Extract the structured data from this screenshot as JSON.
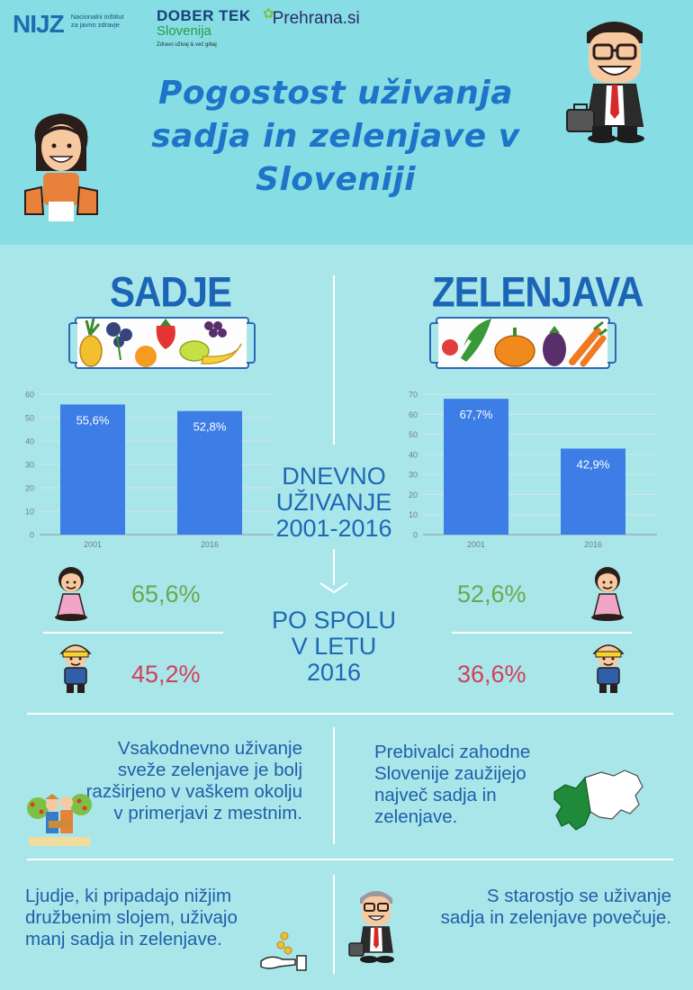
{
  "header": {
    "logos": {
      "nijz_mark": "NIJZ",
      "nijz_line1": "Nacionalni inštitut",
      "nijz_line2": "za javno zdravje",
      "dober_tek_line1": "DOBER TEK",
      "dober_tek_line2": "Slovenija",
      "dober_tek_tagline": "Zdravo uživaj & več gibaj",
      "prehrana": "Prehrana.si"
    },
    "title": "Pogostost uživanja sadja in zelenjave v Sloveniji"
  },
  "sections": {
    "fruit_title": "SADJE",
    "vegetables_title": "ZELENJAVA"
  },
  "center": {
    "daily_label_1": "DNEVNO",
    "daily_label_2": "UŽIVANJE",
    "daily_label_3": "2001-2016",
    "gender_label_1": "PO SPOLU",
    "gender_label_2": "V LETU",
    "gender_label_3": "2016"
  },
  "chart_data": [
    {
      "type": "bar",
      "categories": [
        "2001",
        "2016"
      ],
      "values": [
        55.6,
        52.8
      ],
      "value_labels": [
        "55,6%",
        "52,8%"
      ],
      "yticks": [
        "0",
        "10",
        "20",
        "30",
        "40",
        "50",
        "60"
      ],
      "ylim": [
        0,
        60
      ],
      "grid": true,
      "bar_color": "#3d7de6"
    },
    {
      "type": "bar",
      "categories": [
        "2001",
        "2016"
      ],
      "values": [
        67.7,
        42.9
      ],
      "value_labels": [
        "67,7%",
        "42,9%"
      ],
      "yticks": [
        "0",
        "10",
        "20",
        "30",
        "40",
        "50",
        "60",
        "70"
      ],
      "ylim": [
        0,
        70
      ],
      "grid": true,
      "bar_color": "#3d7de6"
    }
  ],
  "gender": {
    "fruit_women": "65,6%",
    "fruit_men": "45,2%",
    "veg_women": "52,6%",
    "veg_men": "36,6%"
  },
  "facts": {
    "rural": "Vsakodnevno uživanje sveže zelenjave je bolj razširjeno v vaškem okolju v primerjavi z mestnim.",
    "west_line1": "Prebivalci zahodne",
    "west_line2": "Slovenije zaužijejo",
    "west_line3": "največ sadja in",
    "west_line4": "zelenjave.",
    "social_line1": "Ljudje, ki pripadajo nižjim",
    "social_line2": "družbenim slojem, uživajo",
    "social_line3": "manj sadja in zelenjave.",
    "age_line1": "S starostjo se uživanje",
    "age_line2": "sadja in zelenjave povečuje."
  },
  "colors": {
    "title": "#1d74c8",
    "header_band": "#86dde4",
    "background": "#a9e6ea",
    "bars": "#3d7de6",
    "women_pct": "#6aa84f",
    "men_pct": "#d2405a"
  }
}
